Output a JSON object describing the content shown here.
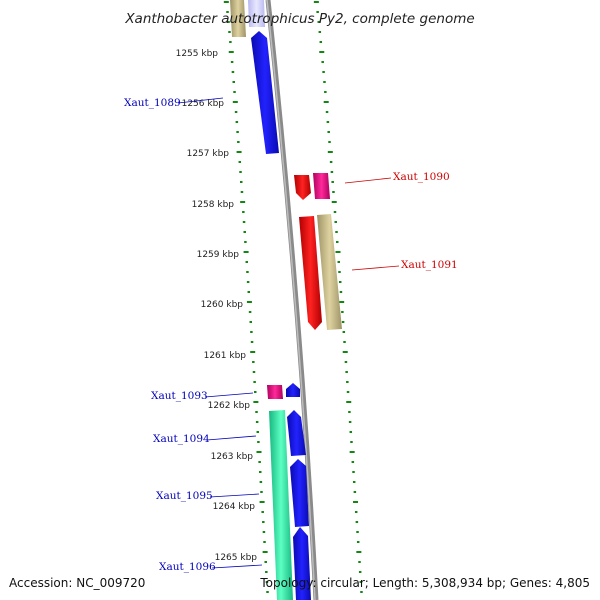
{
  "title": "Xanthobacter autotrophicus Py2, complete genome",
  "accession": "Accession: NC_009720",
  "topology": "Topology: circular; Length: 5,308,934 bp; Genes: 4,805",
  "colors": {
    "backbone": "#8a8a8a",
    "ticks": "#118811",
    "forward_label": "#0000bb",
    "reverse_label": "#cc0000",
    "blue_gene": "#1414ee",
    "red_gene": "#ee1111",
    "magenta_gene": "#ee1188",
    "khaki_gene": "#c8bb88",
    "teal_gene": "#33eeaa"
  },
  "kbp_labels": [
    "1255 kbp",
    "1256 kbp",
    "1257 kbp",
    "1258 kbp",
    "1259 kbp",
    "1260 kbp",
    "1261 kbp",
    "1262 kbp",
    "1263 kbp",
    "1264 kbp",
    "1265 kbp"
  ],
  "gene_labels": [
    {
      "id": "Xaut_1089",
      "strand": "forward"
    },
    {
      "id": "Xaut_1090",
      "strand": "reverse"
    },
    {
      "id": "Xaut_1091",
      "strand": "reverse"
    },
    {
      "id": "Xaut_1093",
      "strand": "forward"
    },
    {
      "id": "Xaut_1094",
      "strand": "forward"
    },
    {
      "id": "Xaut_1095",
      "strand": "forward"
    },
    {
      "id": "Xaut_1096",
      "strand": "forward"
    }
  ]
}
